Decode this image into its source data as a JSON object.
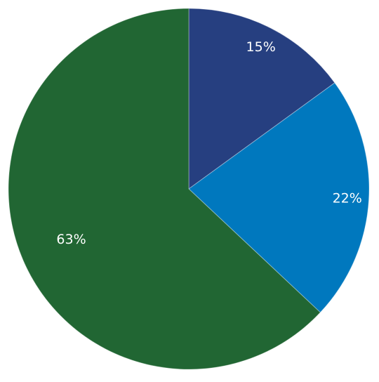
{
  "chart_data": {
    "type": "pie",
    "values": [
      15,
      22,
      63
    ],
    "value_labels": [
      "15%",
      "22%",
      "63%"
    ],
    "colors": [
      "#263f80",
      "#0078be",
      "#216633"
    ]
  }
}
